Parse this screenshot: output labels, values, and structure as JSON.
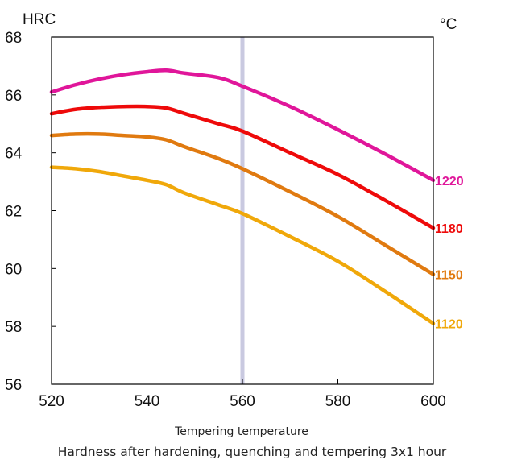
{
  "chart_data": {
    "type": "line",
    "title": "Hardness after hardening, quenching and tempering 3x1 hour",
    "xlabel": "Tempering temperature",
    "ylabel": "HRC",
    "x_unit": "°C",
    "xlim": [
      520,
      600
    ],
    "ylim": [
      56,
      68
    ],
    "x_ticks": [
      520,
      540,
      560,
      580,
      600
    ],
    "y_ticks": [
      56,
      58,
      60,
      62,
      64,
      66,
      68
    ],
    "grid": false,
    "highlight_x": 560,
    "highlight_color": "#c9c9e0",
    "series": [
      {
        "name": "1220",
        "color": "#e0169a",
        "x": [
          520,
          525,
          530,
          535,
          540,
          544,
          548,
          555,
          560,
          570,
          580,
          590,
          600
        ],
        "y": [
          66.1,
          66.35,
          66.55,
          66.7,
          66.8,
          66.85,
          66.75,
          66.6,
          66.3,
          65.6,
          64.8,
          63.95,
          63.05
        ]
      },
      {
        "name": "1180",
        "color": "#ee0a0a",
        "x": [
          520,
          525,
          530,
          535,
          540,
          544,
          548,
          555,
          560,
          570,
          580,
          590,
          600
        ],
        "y": [
          65.35,
          65.5,
          65.57,
          65.6,
          65.6,
          65.55,
          65.35,
          65.0,
          64.75,
          64.0,
          63.25,
          62.35,
          61.4
        ]
      },
      {
        "name": "1150",
        "color": "#e07a10",
        "x": [
          520,
          525,
          530,
          535,
          540,
          544,
          548,
          555,
          560,
          570,
          580,
          590,
          600
        ],
        "y": [
          64.6,
          64.65,
          64.65,
          64.6,
          64.55,
          64.45,
          64.2,
          63.8,
          63.45,
          62.65,
          61.8,
          60.8,
          59.8
        ]
      },
      {
        "name": "1120",
        "color": "#f0a80a",
        "x": [
          520,
          525,
          530,
          535,
          540,
          544,
          548,
          555,
          560,
          570,
          580,
          590,
          600
        ],
        "y": [
          63.5,
          63.45,
          63.35,
          63.2,
          63.05,
          62.9,
          62.6,
          62.2,
          61.9,
          61.1,
          60.25,
          59.2,
          58.1
        ]
      }
    ]
  }
}
